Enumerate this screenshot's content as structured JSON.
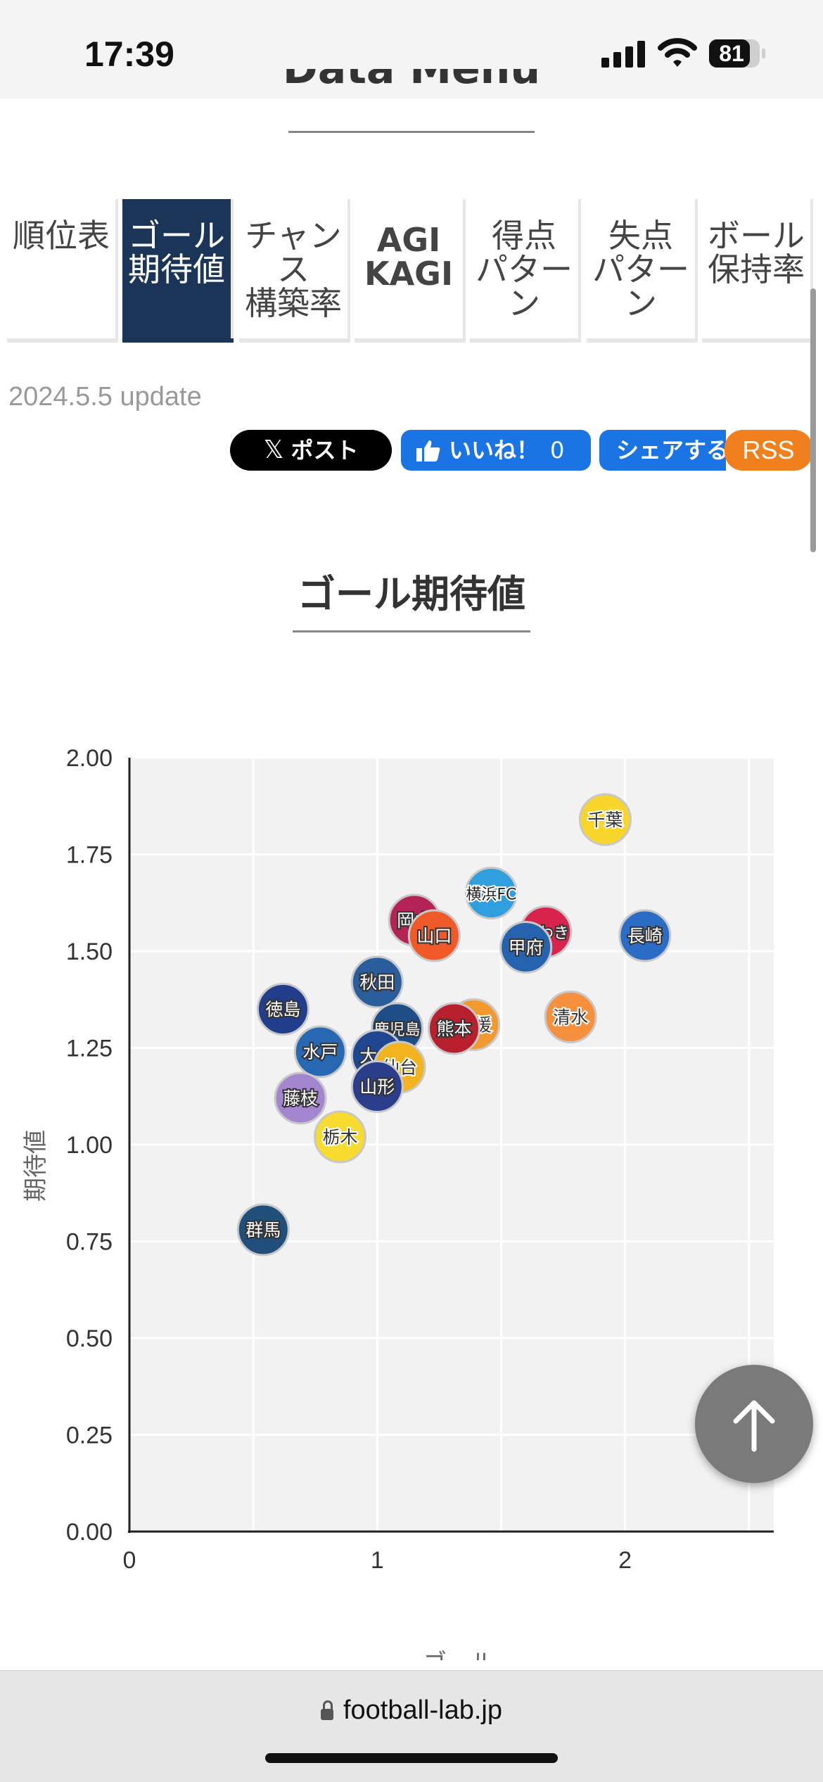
{
  "status_bar": {
    "time": "17:39",
    "battery": "81",
    "battery_level": 0.81
  },
  "header": {
    "title": "Data Menu"
  },
  "tabs": [
    {
      "lines": [
        "順位表"
      ],
      "active": false
    },
    {
      "lines": [
        "ゴール",
        "期待値"
      ],
      "active": true
    },
    {
      "lines": [
        "チャン",
        "ス",
        "構築率"
      ],
      "active": false
    },
    {
      "lines": [
        "AGI",
        "KAGI"
      ],
      "active": false
    },
    {
      "lines": [
        "得点",
        "パター",
        "ン"
      ],
      "active": false
    },
    {
      "lines": [
        "失点",
        "パター",
        "ン"
      ],
      "active": false
    },
    {
      "lines": [
        "ボール",
        "保持率"
      ],
      "active": false
    }
  ],
  "update_text": "2024.5.5 update",
  "share": {
    "post_label": "ポスト",
    "like_label": "いいね！",
    "like_count": "0",
    "share_label": "シェアする",
    "rss_label": "RSS"
  },
  "section_title": "ゴール期待値",
  "chart_data": {
    "type": "scatter",
    "title": "",
    "xlabel": "ゴール",
    "ylabel": "期待値",
    "xlim": [
      0,
      2.6
    ],
    "ylim": [
      0,
      2.0
    ],
    "x_ticks": [
      "0",
      "1",
      "2"
    ],
    "y_ticks": [
      "0.00",
      "0.25",
      "0.50",
      "0.75",
      "1.00",
      "1.25",
      "1.50",
      "1.75",
      "2.00"
    ],
    "grid": true,
    "points": [
      {
        "label": "千葉",
        "x": 1.92,
        "y": 1.84,
        "color": "#f7d52a",
        "text": "#333"
      },
      {
        "label": "横浜FC",
        "x": 1.46,
        "y": 1.65,
        "color": "#2f9fe0",
        "text": "#222"
      },
      {
        "label": "いわき",
        "x": 1.68,
        "y": 1.55,
        "color": "#d8234c",
        "text": "#fff"
      },
      {
        "label": "長崎",
        "x": 2.08,
        "y": 1.54,
        "color": "#2b6cc4",
        "text": "#fff"
      },
      {
        "label": "甲府",
        "x": 1.6,
        "y": 1.51,
        "color": "#2563ae",
        "text": "#fff"
      },
      {
        "label": "岡山",
        "x": 1.15,
        "y": 1.58,
        "color": "#b52356",
        "text": "#fff"
      },
      {
        "label": "山口",
        "x": 1.23,
        "y": 1.54,
        "color": "#f05a28",
        "text": "#fff"
      },
      {
        "label": "秋田",
        "x": 1.0,
        "y": 1.42,
        "color": "#2a5d9c",
        "text": "#fff"
      },
      {
        "label": "徳島",
        "x": 0.62,
        "y": 1.35,
        "color": "#223d8a",
        "text": "#fff"
      },
      {
        "label": "清水",
        "x": 1.78,
        "y": 1.33,
        "color": "#f7903c",
        "text": "#333"
      },
      {
        "label": "鹿児島",
        "x": 1.08,
        "y": 1.3,
        "color": "#1f4d86",
        "text": "#fff"
      },
      {
        "label": "愛媛",
        "x": 1.39,
        "y": 1.31,
        "color": "#f39a2e",
        "text": "#333"
      },
      {
        "label": "熊本",
        "x": 1.31,
        "y": 1.3,
        "color": "#b8202e",
        "text": "#fff"
      },
      {
        "label": "水戸",
        "x": 0.77,
        "y": 1.24,
        "color": "#2867b2",
        "text": "#fff"
      },
      {
        "label": "大分",
        "x": 1.0,
        "y": 1.23,
        "color": "#1f4690",
        "text": "#fff"
      },
      {
        "label": "仙台",
        "x": 1.09,
        "y": 1.2,
        "color": "#f2b31e",
        "text": "#333"
      },
      {
        "label": "山形",
        "x": 1.0,
        "y": 1.15,
        "color": "#2a3e8c",
        "text": "#fff"
      },
      {
        "label": "藤枝",
        "x": 0.69,
        "y": 1.12,
        "color": "#a485cf",
        "text": "#fff"
      },
      {
        "label": "栃木",
        "x": 0.85,
        "y": 1.02,
        "color": "#f7dc2f",
        "text": "#333"
      },
      {
        "label": "群馬",
        "x": 0.54,
        "y": 0.78,
        "color": "#1f4f7a",
        "text": "#fff"
      }
    ]
  },
  "browser": {
    "url": "football-lab.jp"
  }
}
